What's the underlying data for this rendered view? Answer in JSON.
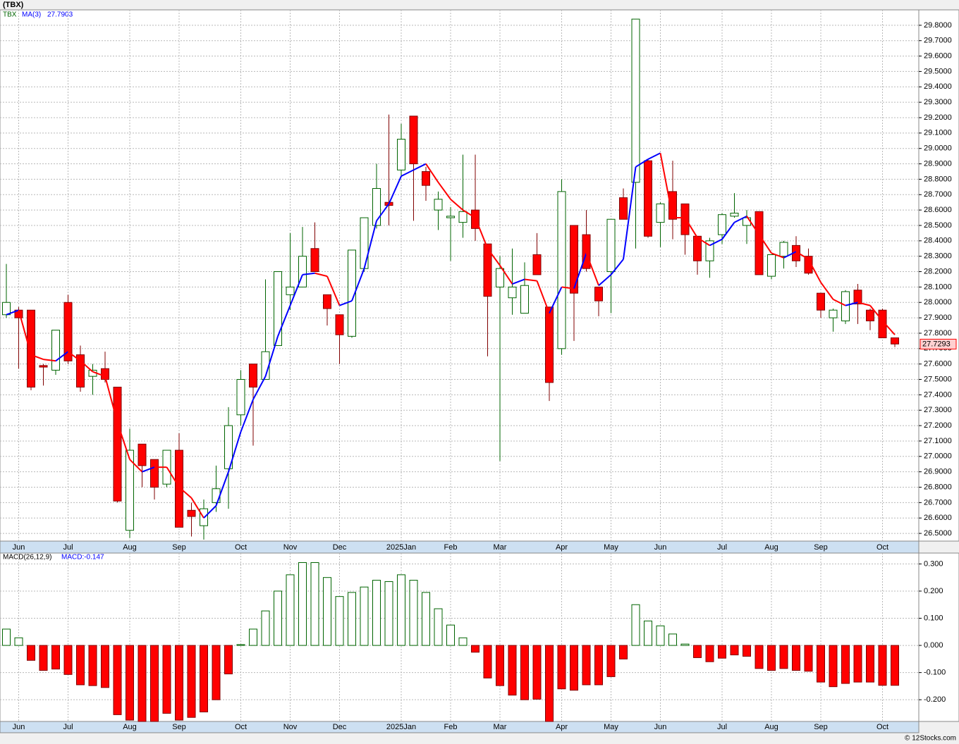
{
  "chart_data": [
    {
      "type": "candlestick",
      "title": "(TBX)",
      "categories": [
        null,
        "Jun",
        null,
        null,
        null,
        "Jul",
        null,
        null,
        null,
        null,
        "Aug",
        null,
        null,
        null,
        "Sep",
        null,
        null,
        null,
        null,
        "Oct",
        null,
        null,
        null,
        "Nov",
        null,
        null,
        null,
        "Dec",
        null,
        null,
        null,
        null,
        "2025Jan",
        null,
        null,
        null,
        "Feb",
        null,
        null,
        null,
        "Mar",
        null,
        null,
        null,
        null,
        "Apr",
        null,
        null,
        null,
        "May",
        null,
        null,
        null,
        "Jun",
        null,
        null,
        null,
        null,
        "Jul",
        null,
        null,
        null,
        "Aug",
        null,
        null,
        null,
        "Sep",
        null,
        null,
        null,
        null,
        "Oct",
        null
      ],
      "series": [
        {
          "name": "TBX",
          "up_color": "#006400",
          "down_color": "#ff0000",
          "open": [
            27.92,
            27.95,
            27.95,
            27.59,
            27.56,
            28.0,
            27.66,
            27.52,
            27.57,
            27.45,
            26.52,
            27.08,
            26.98,
            26.82,
            27.04,
            26.65,
            26.55,
            26.7,
            26.92,
            27.27,
            27.6,
            27.5,
            27.72,
            28.05,
            28.1,
            28.35,
            28.05,
            27.92,
            27.78,
            28.22,
            28.5,
            28.65,
            28.86,
            29.21,
            28.85,
            28.6,
            28.55,
            28.52,
            28.6,
            28.38,
            28.1,
            28.03,
            27.93,
            28.31,
            27.97,
            27.7,
            28.5,
            28.44,
            28.1,
            28.2,
            28.68,
            28.78,
            28.92,
            28.52,
            28.72,
            28.64,
            28.43,
            28.27,
            28.44,
            28.56,
            28.5,
            28.59,
            28.17,
            28.3,
            28.37,
            28.3,
            28.06,
            27.9,
            27.88,
            28.08,
            27.95,
            27.95,
            27.77
          ],
          "high": [
            28.25,
            27.97,
            27.95,
            27.6,
            27.82,
            28.05,
            27.72,
            27.6,
            27.68,
            27.45,
            27.18,
            27.08,
            26.98,
            27.04,
            27.15,
            26.7,
            26.72,
            26.94,
            27.32,
            27.56,
            27.6,
            28.15,
            28.2,
            28.45,
            28.49,
            28.52,
            28.05,
            27.92,
            28.34,
            28.55,
            28.9,
            29.22,
            29.16,
            29.21,
            28.88,
            28.72,
            28.62,
            28.96,
            28.96,
            28.38,
            28.3,
            28.35,
            28.26,
            28.45,
            27.97,
            28.8,
            28.5,
            28.6,
            28.1,
            28.54,
            28.74,
            29.84,
            28.93,
            28.65,
            28.92,
            28.64,
            28.43,
            28.42,
            28.58,
            28.71,
            28.6,
            28.59,
            28.31,
            28.4,
            28.43,
            28.35,
            28.06,
            27.96,
            28.08,
            28.12,
            27.96,
            27.96,
            27.77
          ],
          "low": [
            27.9,
            27.57,
            27.43,
            27.46,
            27.53,
            27.6,
            27.42,
            27.4,
            27.48,
            26.7,
            26.47,
            26.8,
            26.72,
            26.8,
            26.54,
            26.48,
            26.46,
            26.64,
            26.66,
            27.2,
            27.07,
            27.5,
            27.72,
            27.95,
            28.1,
            28.2,
            27.85,
            27.6,
            27.77,
            28.2,
            28.48,
            28.5,
            28.82,
            28.53,
            28.66,
            28.47,
            28.27,
            28.42,
            28.4,
            27.65,
            26.97,
            27.92,
            27.93,
            28.18,
            27.36,
            27.66,
            27.75,
            28.2,
            27.91,
            27.93,
            28.54,
            28.35,
            28.42,
            28.36,
            28.41,
            28.31,
            28.18,
            28.16,
            28.38,
            28.55,
            28.38,
            28.18,
            28.15,
            28.22,
            28.23,
            28.18,
            27.9,
            27.81,
            27.86,
            27.86,
            27.82,
            27.77,
            27.71
          ],
          "close": [
            28.0,
            27.9,
            27.45,
            27.58,
            27.82,
            27.62,
            27.45,
            27.56,
            27.5,
            26.71,
            27.04,
            26.94,
            26.8,
            27.04,
            26.54,
            26.61,
            26.66,
            26.79,
            27.2,
            27.5,
            27.45,
            27.68,
            28.2,
            28.1,
            28.3,
            28.2,
            27.96,
            27.79,
            28.34,
            28.55,
            28.74,
            28.63,
            29.06,
            28.9,
            28.76,
            28.67,
            28.56,
            28.59,
            28.48,
            28.04,
            28.22,
            28.1,
            28.11,
            28.18,
            27.48,
            28.72,
            28.06,
            28.22,
            28.01,
            28.54,
            28.54,
            29.84,
            28.43,
            28.64,
            28.54,
            28.44,
            28.27,
            28.4,
            28.57,
            28.58,
            28.55,
            28.18,
            28.31,
            28.39,
            28.27,
            28.19,
            27.95,
            27.95,
            28.07,
            27.99,
            27.88,
            27.77,
            27.73
          ]
        }
      ],
      "ma": {
        "name": "MA(3)",
        "current": 27.7903,
        "up_color": "#0000ff",
        "down_color": "#ff0000",
        "values": [
          27.92,
          27.95,
          27.66,
          27.63,
          27.62,
          27.68,
          27.62,
          27.55,
          27.52,
          27.22,
          26.98,
          26.9,
          26.93,
          26.93,
          26.8,
          26.73,
          26.6,
          26.68,
          26.9,
          27.16,
          27.37,
          27.52,
          27.78,
          27.98,
          28.18,
          28.19,
          28.17,
          27.98,
          28.01,
          28.22,
          28.53,
          28.64,
          28.82,
          28.86,
          28.9,
          28.78,
          28.67,
          28.6,
          28.55,
          28.35,
          28.24,
          28.12,
          28.15,
          28.14,
          27.93,
          28.1,
          28.09,
          28.32,
          28.11,
          28.18,
          28.28,
          28.88,
          28.93,
          28.97,
          28.55,
          28.55,
          28.42,
          28.37,
          28.41,
          28.52,
          28.56,
          28.44,
          28.32,
          28.29,
          28.33,
          28.28,
          28.13,
          28.02,
          27.98,
          28.0,
          27.98,
          27.88,
          27.79
        ]
      },
      "last_price": 27.7293,
      "ylim": [
        26.45,
        29.9
      ],
      "yticks": [
        {
          "value": 26.5,
          "label": "26.5000"
        },
        {
          "value": 26.6,
          "label": "26.6000"
        },
        {
          "value": 26.7,
          "label": "26.7000"
        },
        {
          "value": 26.8,
          "label": "26.8000"
        },
        {
          "value": 26.9,
          "label": "26.9000"
        },
        {
          "value": 27.0,
          "label": "27.0000"
        },
        {
          "value": 27.1,
          "label": "27.1000"
        },
        {
          "value": 27.2,
          "label": "27.2000"
        },
        {
          "value": 27.3,
          "label": "27.3000"
        },
        {
          "value": 27.4,
          "label": "27.4000"
        },
        {
          "value": 27.5,
          "label": "27.5000"
        },
        {
          "value": 27.6,
          "label": "27.6000"
        },
        {
          "value": 27.7,
          "label": "27.7000"
        },
        {
          "value": 27.8,
          "label": "27.8000"
        },
        {
          "value": 27.9,
          "label": "27.9000"
        },
        {
          "value": 28.0,
          "label": "28.0000"
        },
        {
          "value": 28.1,
          "label": "28.1000"
        },
        {
          "value": 28.2,
          "label": "28.2000"
        },
        {
          "value": 28.3,
          "label": "28.3000"
        },
        {
          "value": 28.4,
          "label": "28.4000"
        },
        {
          "value": 28.5,
          "label": "28.5000"
        },
        {
          "value": 28.6,
          "label": "28.6000"
        },
        {
          "value": 28.7,
          "label": "28.7000"
        },
        {
          "value": 28.8,
          "label": "28.8000"
        },
        {
          "value": 28.9,
          "label": "28.9000"
        },
        {
          "value": 29.0,
          "label": "29.0000"
        },
        {
          "value": 29.1,
          "label": "29.1000"
        },
        {
          "value": 29.2,
          "label": "29.2000"
        },
        {
          "value": 29.3,
          "label": "29.3000"
        },
        {
          "value": 29.4,
          "label": "29.4000"
        },
        {
          "value": 29.5,
          "label": "29.5000"
        },
        {
          "value": 29.6,
          "label": "29.6000"
        },
        {
          "value": 29.7,
          "label": "29.7000"
        },
        {
          "value": 29.8,
          "label": "29.8000"
        }
      ],
      "grid": true
    },
    {
      "type": "bar",
      "name": "MACD(26,12,9)",
      "current_label": "MACD:-0.147",
      "up_color": "#006400",
      "down_color": "#ff0000",
      "categories": [
        null,
        "Jun",
        null,
        null,
        null,
        "Jul",
        null,
        null,
        null,
        null,
        "Aug",
        null,
        null,
        null,
        "Sep",
        null,
        null,
        null,
        null,
        "Oct",
        null,
        null,
        null,
        "Nov",
        null,
        null,
        null,
        "Dec",
        null,
        null,
        null,
        null,
        "2025Jan",
        null,
        null,
        null,
        "Feb",
        null,
        null,
        null,
        "Mar",
        null,
        null,
        null,
        null,
        "Apr",
        null,
        null,
        null,
        "May",
        null,
        null,
        null,
        "Jun",
        null,
        null,
        null,
        null,
        "Jul",
        null,
        null,
        null,
        "Aug",
        null,
        null,
        null,
        "Sep",
        null,
        null,
        null,
        null,
        "Oct",
        null
      ],
      "values": [
        0.06,
        0.028,
        -0.055,
        -0.092,
        -0.087,
        -0.107,
        -0.145,
        -0.148,
        -0.155,
        -0.255,
        -0.275,
        -0.28,
        -0.28,
        -0.25,
        -0.275,
        -0.265,
        -0.245,
        -0.2,
        -0.105,
        0.003,
        0.06,
        0.127,
        0.2,
        0.26,
        0.305,
        0.305,
        0.25,
        0.18,
        0.195,
        0.215,
        0.24,
        0.235,
        0.26,
        0.24,
        0.195,
        0.135,
        0.075,
        0.028,
        -0.025,
        -0.12,
        -0.148,
        -0.183,
        -0.2,
        -0.198,
        -0.28,
        -0.16,
        -0.165,
        -0.145,
        -0.145,
        -0.115,
        -0.05,
        0.15,
        0.09,
        0.072,
        0.042,
        0.005,
        -0.045,
        -0.06,
        -0.047,
        -0.035,
        -0.04,
        -0.085,
        -0.092,
        -0.085,
        -0.092,
        -0.095,
        -0.135,
        -0.152,
        -0.14,
        -0.135,
        -0.135,
        -0.147,
        -0.147
      ],
      "ylim": [
        -0.28,
        0.34
      ],
      "yticks": [
        {
          "value": 0.3,
          "label": "0.300"
        },
        {
          "value": 0.2,
          "label": "0.200"
        },
        {
          "value": 0.1,
          "label": "0.100"
        },
        {
          "value": 0,
          "label": "0.000"
        },
        {
          "value": -0.1,
          "label": "-0.100"
        },
        {
          "value": -0.2,
          "label": "-0.200"
        }
      ],
      "grid": true
    }
  ],
  "footer": "© 12Stocks.com"
}
